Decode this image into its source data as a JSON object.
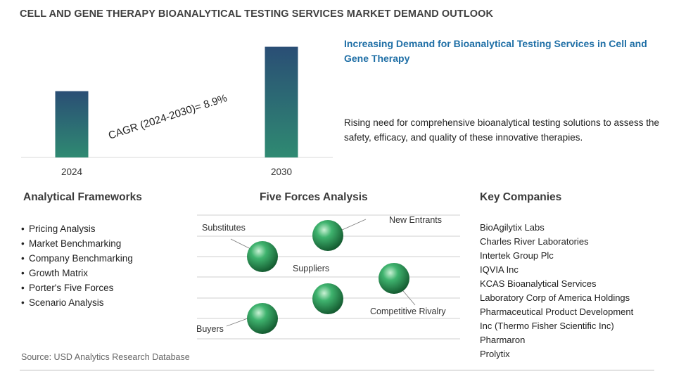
{
  "title": "CELL AND GENE THERAPY BIOANALYTICAL TESTING SERVICES MARKET DEMAND OUTLOOK",
  "chart_data": {
    "type": "bar",
    "categories": [
      "2024",
      "2030"
    ],
    "values": [
      1.0,
      1.67
    ],
    "annotation": "CAGR (2024-2030)=  8.9%",
    "grid": false,
    "legend": "none",
    "ylim": [
      0,
      1.75
    ],
    "colors": {
      "bar_top": "#2a4e75",
      "bar_bottom": "#2f8a72"
    }
  },
  "headline": "Increasing Demand for Bioanalytical Testing Services in Cell and Gene Therapy",
  "description": "Rising need for comprehensive bioanalytical testing solutions to assess the safety, efficacy, and quality of these innovative therapies.",
  "frameworks": {
    "title": "Analytical Frameworks",
    "items": [
      "Pricing Analysis",
      "Market Benchmarking",
      "Company Benchmarking",
      "Growth Matrix",
      "Porter's Five Forces",
      "Scenario Analysis"
    ]
  },
  "five_forces": {
    "title": "Five Forces Analysis",
    "labels": {
      "new_entrants": "New Entrants",
      "substitutes": "Substitutes",
      "suppliers": "Suppliers",
      "competitive_rivalry": "Competitive Rivalry",
      "buyers": "Buyers"
    },
    "sphere_color": "#2e9a5e"
  },
  "companies": {
    "title": "Key Companies",
    "items": [
      "BioAgilytix Labs",
      "Charles River Laboratories",
      "Intertek Group Plc",
      "IQVIA Inc",
      "KCAS Bioanalytical Services",
      "Laboratory Corp of America Holdings",
      "Pharmaceutical Product Development",
      "Inc (Thermo Fisher Scientific Inc)",
      "Pharmaron",
      "Prolytix"
    ]
  },
  "source": "Source: USD Analytics Research Database"
}
